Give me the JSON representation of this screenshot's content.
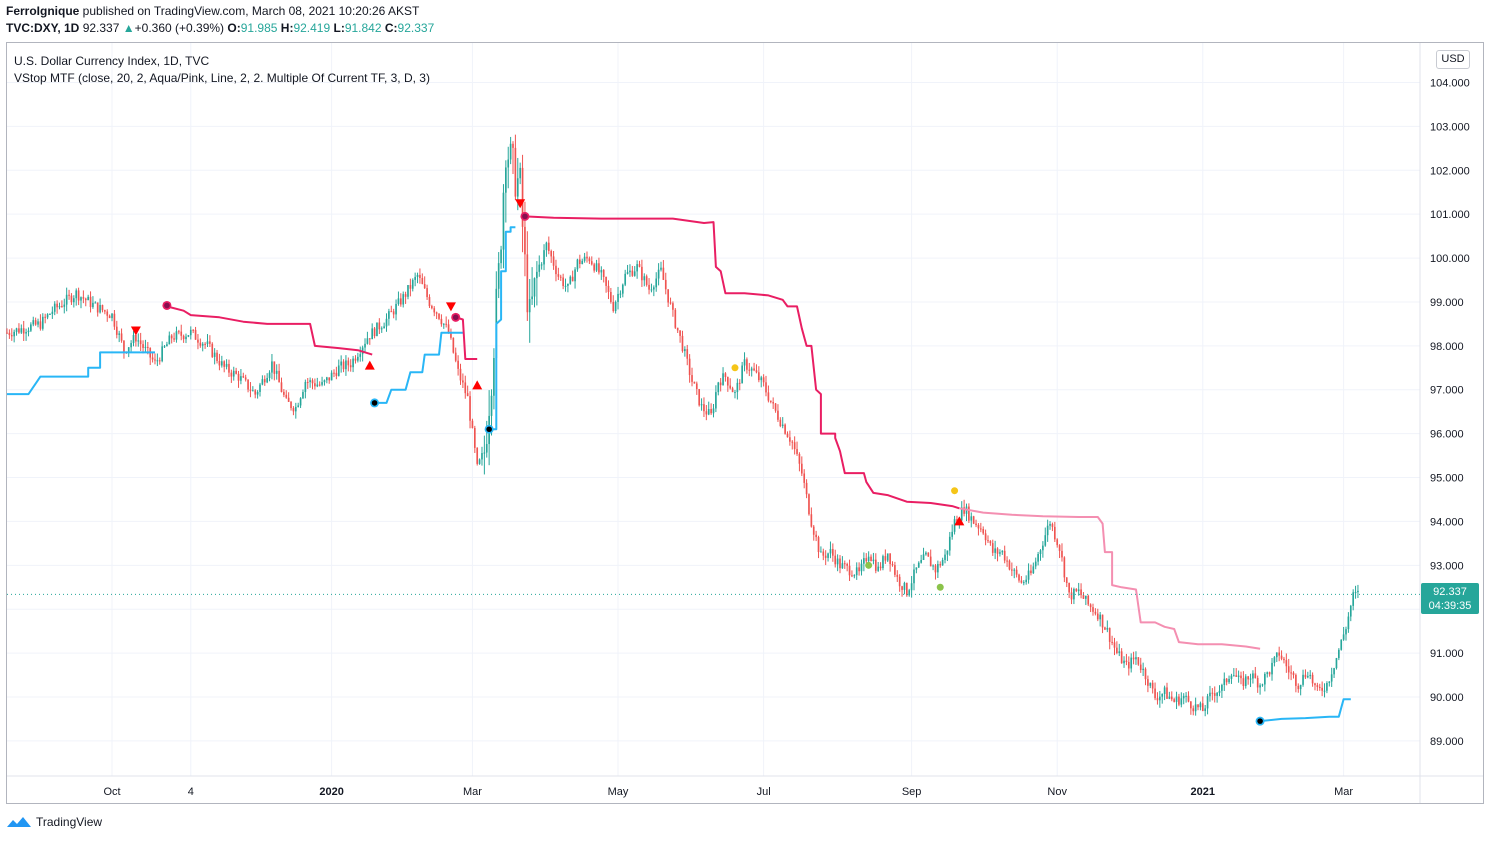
{
  "header": {
    "author": "FerroIgnique",
    "published_text": " published on TradingView.com, March 08, 2021 10:20:26 AKST",
    "symbol": "TVC:DXY, 1D",
    "last": "92.337",
    "change_arrow": "▲",
    "change": "+0.360 (+0.39%)",
    "o_label": "O:",
    "o": "91.985",
    "h_label": "H:",
    "h": "92.419",
    "l_label": "L:",
    "l": "91.842",
    "c_label": "C:",
    "c": "92.337"
  },
  "legend": {
    "title": "U.S. Dollar Currency Index, 1D, TVC",
    "indicator": "VStop MTF (close, 20, 2, Aqua/Pink, Line, 2, 2. Multiple Of Current TF, 3, D, 3)"
  },
  "currency": "USD",
  "price_tag": {
    "price": "92.337",
    "countdown": "04:39:35"
  },
  "footer": {
    "brand": "TradingView",
    "icon": "tradingview-logo-icon"
  },
  "colors": {
    "up": "#26a69a",
    "down": "#ef5350",
    "aqua": "#29b6f6",
    "pink": "#e91e63",
    "light_pink": "#f48fb1"
  },
  "chart_data": {
    "type": "candlestick",
    "title": "U.S. Dollar Currency Index, 1D, TVC",
    "ylim": [
      88.2,
      104.9
    ],
    "y_ticks": [
      "104.000",
      "103.000",
      "102.000",
      "101.000",
      "100.000",
      "99.000",
      "98.000",
      "97.000",
      "96.000",
      "95.000",
      "94.000",
      "93.000",
      "92.000",
      "91.000",
      "90.000",
      "89.000"
    ],
    "x_ticks": [
      {
        "label": "Oct",
        "bold": false,
        "day": 15
      },
      {
        "label": "4",
        "bold": false,
        "day": 48
      },
      {
        "label": "2020",
        "bold": true,
        "day": 107
      },
      {
        "label": "Mar",
        "bold": false,
        "day": 166
      },
      {
        "label": "May",
        "bold": false,
        "day": 227
      },
      {
        "label": "Jul",
        "bold": false,
        "day": 288
      },
      {
        "label": "Sep",
        "bold": false,
        "day": 350
      },
      {
        "label": "Nov",
        "bold": false,
        "day": 411
      },
      {
        "label": "2021",
        "bold": true,
        "day": 472
      },
      {
        "label": "Mar",
        "bold": false,
        "day": 531
      }
    ],
    "day_range": [
      -29,
      563
    ],
    "price_anchor": [
      [
        -29,
        98.3
      ],
      [
        -15,
        98.5
      ],
      [
        -10,
        98.8
      ],
      [
        0,
        99.2
      ],
      [
        8,
        98.9
      ],
      [
        15,
        98.7
      ],
      [
        20,
        97.9
      ],
      [
        25,
        98.2
      ],
      [
        33,
        97.6
      ],
      [
        40,
        98.2
      ],
      [
        48,
        98.3
      ],
      [
        55,
        98.0
      ],
      [
        62,
        97.5
      ],
      [
        68,
        97.3
      ],
      [
        75,
        96.9
      ],
      [
        82,
        97.6
      ],
      [
        88,
        96.7
      ],
      [
        92,
        96.6
      ],
      [
        96,
        97.2
      ],
      [
        103,
        97.1
      ],
      [
        110,
        97.5
      ],
      [
        115,
        97.6
      ],
      [
        122,
        98.2
      ],
      [
        130,
        98.6
      ],
      [
        137,
        99.1
      ],
      [
        143,
        99.6
      ],
      [
        148,
        99.0
      ],
      [
        152,
        98.7
      ],
      [
        156,
        98.3
      ],
      [
        160,
        97.4
      ],
      [
        164,
        96.8
      ],
      [
        168,
        95.2
      ],
      [
        171,
        95.6
      ],
      [
        174,
        97.4
      ],
      [
        177,
        99.6
      ],
      [
        180,
        102.6
      ],
      [
        183,
        102.0
      ],
      [
        186,
        101.6
      ],
      [
        188,
        99.8
      ],
      [
        190,
        98.6
      ],
      [
        193,
        99.6
      ],
      [
        197,
        100.3
      ],
      [
        202,
        99.6
      ],
      [
        206,
        99.3
      ],
      [
        210,
        99.9
      ],
      [
        215,
        100.0
      ],
      [
        220,
        99.6
      ],
      [
        225,
        98.9
      ],
      [
        230,
        99.6
      ],
      [
        235,
        99.8
      ],
      [
        240,
        99.3
      ],
      [
        245,
        99.7
      ],
      [
        250,
        98.7
      ],
      [
        254,
        98.0
      ],
      [
        258,
        97.2
      ],
      [
        262,
        96.6
      ],
      [
        266,
        96.4
      ],
      [
        269,
        97.2
      ],
      [
        272,
        97.3
      ],
      [
        276,
        96.9
      ],
      [
        280,
        97.6
      ],
      [
        284,
        97.4
      ],
      [
        288,
        97.1
      ],
      [
        292,
        96.6
      ],
      [
        296,
        96.2
      ],
      [
        300,
        95.8
      ],
      [
        304,
        95.1
      ],
      [
        308,
        94.0
      ],
      [
        312,
        93.2
      ],
      [
        316,
        93.3
      ],
      [
        320,
        93.0
      ],
      [
        324,
        92.9
      ],
      [
        328,
        92.8
      ],
      [
        332,
        93.3
      ],
      [
        336,
        92.9
      ],
      [
        340,
        93.3
      ],
      [
        344,
        92.7
      ],
      [
        348,
        92.4
      ],
      [
        352,
        92.9
      ],
      [
        356,
        93.2
      ],
      [
        360,
        92.9
      ],
      [
        364,
        93.2
      ],
      [
        368,
        94.0
      ],
      [
        372,
        94.3
      ],
      [
        376,
        94.0
      ],
      [
        380,
        93.8
      ],
      [
        384,
        93.3
      ],
      [
        388,
        93.3
      ],
      [
        392,
        92.9
      ],
      [
        396,
        92.6
      ],
      [
        400,
        92.8
      ],
      [
        404,
        93.4
      ],
      [
        408,
        94.0
      ],
      [
        412,
        93.4
      ],
      [
        416,
        92.3
      ],
      [
        420,
        92.4
      ],
      [
        424,
        92.1
      ],
      [
        428,
        91.9
      ],
      [
        432,
        91.5
      ],
      [
        436,
        91.0
      ],
      [
        440,
        90.7
      ],
      [
        444,
        90.9
      ],
      [
        448,
        90.5
      ],
      [
        452,
        90.0
      ],
      [
        456,
        90.1
      ],
      [
        460,
        89.9
      ],
      [
        464,
        90.0
      ],
      [
        468,
        89.8
      ],
      [
        472,
        89.7
      ],
      [
        476,
        90.1
      ],
      [
        480,
        90.2
      ],
      [
        484,
        90.6
      ],
      [
        488,
        90.3
      ],
      [
        492,
        90.5
      ],
      [
        496,
        90.3
      ],
      [
        500,
        90.6
      ],
      [
        504,
        91.0
      ],
      [
        508,
        90.6
      ],
      [
        512,
        90.3
      ],
      [
        516,
        90.6
      ],
      [
        520,
        90.1
      ],
      [
        524,
        90.3
      ],
      [
        528,
        90.9
      ],
      [
        532,
        91.6
      ],
      [
        535,
        92.3
      ],
      [
        537,
        92.34
      ]
    ],
    "vstop_segments": [
      {
        "color": "aqua",
        "points": [
          [
            -29,
            96.9
          ],
          [
            -20,
            96.9
          ],
          [
            -15,
            97.3
          ],
          [
            5,
            97.3
          ],
          [
            5,
            97.5
          ],
          [
            10,
            97.5
          ],
          [
            10,
            97.85
          ],
          [
            33,
            97.85
          ]
        ]
      },
      {
        "color": "pink",
        "points": [
          [
            38,
            98.9
          ],
          [
            45,
            98.8
          ],
          [
            48,
            98.7
          ],
          [
            60,
            98.65
          ],
          [
            70,
            98.55
          ],
          [
            80,
            98.5
          ],
          [
            98,
            98.5
          ],
          [
            100,
            98.0
          ],
          [
            110,
            97.95
          ],
          [
            118,
            97.9
          ],
          [
            124,
            97.8
          ]
        ]
      },
      {
        "color": "aqua",
        "points": [
          [
            125,
            96.7
          ],
          [
            130,
            96.7
          ],
          [
            132,
            97.0
          ],
          [
            138,
            97.0
          ],
          [
            140,
            97.4
          ],
          [
            145,
            97.4
          ],
          [
            146,
            97.8
          ],
          [
            152,
            97.8
          ],
          [
            153,
            98.3
          ],
          [
            162,
            98.3
          ]
        ]
      },
      {
        "color": "pink",
        "points": [
          [
            159,
            98.65
          ],
          [
            162,
            98.6
          ],
          [
            163,
            97.7
          ],
          [
            168,
            97.7
          ]
        ]
      },
      {
        "color": "aqua",
        "points": [
          [
            173,
            96.1
          ],
          [
            176,
            96.1
          ],
          [
            176,
            98.5
          ],
          [
            178,
            98.6
          ],
          [
            178,
            99.7
          ],
          [
            180,
            99.7
          ],
          [
            180,
            100.6
          ],
          [
            182,
            100.6
          ],
          [
            182,
            100.7
          ],
          [
            184,
            100.7
          ]
        ]
      },
      {
        "color": "pink",
        "points": [
          [
            188,
            100.95
          ],
          [
            200,
            100.92
          ],
          [
            220,
            100.9
          ],
          [
            250,
            100.9
          ],
          [
            263,
            100.8
          ],
          [
            267,
            100.82
          ],
          [
            268,
            99.8
          ],
          [
            270,
            99.7
          ],
          [
            272,
            99.2
          ],
          [
            280,
            99.2
          ],
          [
            290,
            99.15
          ],
          [
            296,
            99.05
          ],
          [
            298,
            98.9
          ],
          [
            302,
            98.9
          ],
          [
            304,
            98.4
          ],
          [
            306,
            98.0
          ],
          [
            308,
            98.0
          ],
          [
            310,
            97.0
          ],
          [
            312,
            96.9
          ],
          [
            312,
            96.0
          ],
          [
            318,
            96.0
          ],
          [
            318,
            95.9
          ],
          [
            320,
            95.6
          ],
          [
            322,
            95.1
          ],
          [
            330,
            95.1
          ],
          [
            331,
            94.9
          ],
          [
            334,
            94.65
          ],
          [
            340,
            94.6
          ],
          [
            348,
            94.45
          ],
          [
            358,
            94.42
          ],
          [
            367,
            94.35
          ],
          [
            370,
            94.3
          ]
        ]
      },
      {
        "color": "light_pink",
        "points": [
          [
            370,
            94.3
          ],
          [
            380,
            94.2
          ],
          [
            392,
            94.15
          ],
          [
            405,
            94.12
          ],
          [
            420,
            94.1
          ],
          [
            428,
            94.1
          ],
          [
            430,
            93.95
          ],
          [
            431,
            93.3
          ],
          [
            434,
            93.3
          ],
          [
            434,
            92.55
          ],
          [
            438,
            92.5
          ],
          [
            444,
            92.45
          ],
          [
            446,
            91.7
          ],
          [
            452,
            91.7
          ],
          [
            456,
            91.6
          ],
          [
            460,
            91.55
          ],
          [
            462,
            91.25
          ],
          [
            470,
            91.2
          ],
          [
            480,
            91.2
          ],
          [
            490,
            91.15
          ],
          [
            496,
            91.1
          ]
        ]
      },
      {
        "color": "aqua",
        "points": [
          [
            496,
            89.45
          ],
          [
            505,
            89.5
          ],
          [
            515,
            89.52
          ],
          [
            525,
            89.55
          ],
          [
            529,
            89.55
          ],
          [
            531,
            89.95
          ],
          [
            534,
            89.95
          ]
        ]
      }
    ],
    "dots": [
      {
        "day": 38,
        "price": 98.92,
        "color": "#880e4f",
        "ring": "pink"
      },
      {
        "day": 125,
        "price": 96.7,
        "color": "#000000",
        "ring": "aqua"
      },
      {
        "day": 159,
        "price": 98.65,
        "color": "#880e4f",
        "ring": "pink"
      },
      {
        "day": 173,
        "price": 96.1,
        "color": "#000000",
        "ring": "aqua"
      },
      {
        "day": 188,
        "price": 100.95,
        "color": "#880e4f",
        "ring": "pink"
      },
      {
        "day": 496,
        "price": 89.45,
        "color": "#000000",
        "ring": "aqua"
      },
      {
        "day": 276,
        "price": 97.5,
        "color": "#f5c518",
        "ring": ""
      },
      {
        "day": 368,
        "price": 94.7,
        "color": "#f5c518",
        "ring": ""
      },
      {
        "day": 332,
        "price": 93.0,
        "color": "#8bc34a",
        "ring": ""
      },
      {
        "day": 362,
        "price": 92.5,
        "color": "#8bc34a",
        "ring": ""
      }
    ],
    "triangles": [
      {
        "day": 25,
        "price": 98.35,
        "dir": "down"
      },
      {
        "day": 123,
        "price": 97.55,
        "dir": "up"
      },
      {
        "day": 157,
        "price": 98.9,
        "dir": "down"
      },
      {
        "day": 168,
        "price": 97.1,
        "dir": "up"
      },
      {
        "day": 186,
        "price": 101.25,
        "dir": "down"
      },
      {
        "day": 370,
        "price": 94.0,
        "dir": "up"
      }
    ],
    "last_price": 92.337
  }
}
